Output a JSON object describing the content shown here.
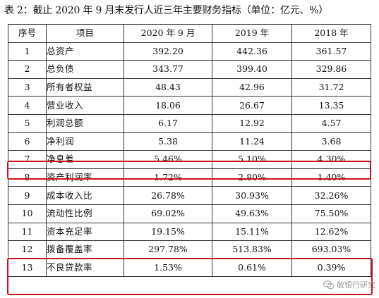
{
  "caption": "表 2：截止 2020 年 9 月末发行人近三年主要财务指标（单位：亿元、%）",
  "headers": {
    "no": "序号",
    "item": "项目",
    "col1": "2020 年 9 月",
    "col2": "2019 年",
    "col3": "2018 年"
  },
  "rows": [
    {
      "no": "1",
      "item": "总资产",
      "v2020": "392.20",
      "v2019": "442.36",
      "v2018": "361.57"
    },
    {
      "no": "2",
      "item": "总负债",
      "v2020": "343.77",
      "v2019": "399.40",
      "v2018": "329.86"
    },
    {
      "no": "3",
      "item": "所有者权益",
      "v2020": "48.43",
      "v2019": "42.96",
      "v2018": "31.72"
    },
    {
      "no": "4",
      "item": "营业收入",
      "v2020": "18.06",
      "v2019": "26.67",
      "v2018": "13.35"
    },
    {
      "no": "5",
      "item": "利润总额",
      "v2020": "6.17",
      "v2019": "12.92",
      "v2018": "4.57"
    },
    {
      "no": "6",
      "item": "净利润",
      "v2020": "5.38",
      "v2019": "11.24",
      "v2018": "3.68"
    },
    {
      "no": "7",
      "item": "净息差",
      "v2020": "5.46%",
      "v2019": "5.10%",
      "v2018": "4.30%"
    },
    {
      "no": "8",
      "item": "资产利润率",
      "v2020": "1.72%",
      "v2019": "2.80%",
      "v2018": "1.40%"
    },
    {
      "no": "9",
      "item": "成本收入比",
      "v2020": "26.78%",
      "v2019": "30.93%",
      "v2018": "32.26%"
    },
    {
      "no": "10",
      "item": "流动性比例",
      "v2020": "69.02%",
      "v2019": "49.63%",
      "v2018": "75.50%"
    },
    {
      "no": "11",
      "item": "资本充足率",
      "v2020": "19.15%",
      "v2019": "15.11%",
      "v2018": "12.62%"
    },
    {
      "no": "12",
      "item": "拨备覆盖率",
      "v2020": "297.78%",
      "v2019": "513.83%",
      "v2018": "693.03%"
    },
    {
      "no": "13",
      "item": "不良贷款率",
      "v2020": "1.53%",
      "v2019": "0.61%",
      "v2018": "0.39%"
    }
  ],
  "highlight_color": "#d0101c",
  "watermark": {
    "text": "敏银行研究",
    "icon": "wechat-icon"
  }
}
